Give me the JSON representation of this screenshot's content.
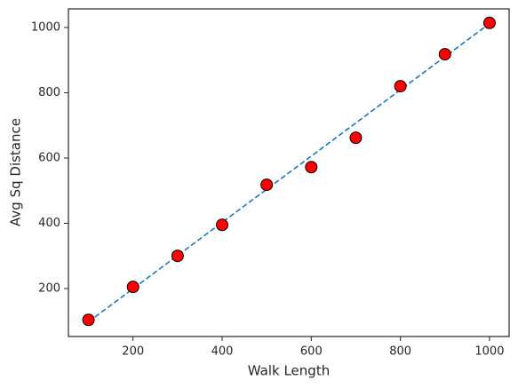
{
  "chart_data": {
    "type": "scatter",
    "xlabel": "Walk Length",
    "ylabel": "Avg Sq Distance",
    "xlim": [
      55,
      1044
    ],
    "ylim": [
      53,
      1057
    ],
    "xticks": [
      200,
      400,
      600,
      800,
      1000
    ],
    "yticks": [
      200,
      400,
      600,
      800,
      1000
    ],
    "series": [
      {
        "kind": "line",
        "style": "dashed",
        "color": "#1f77b4",
        "x": [
          100,
          1000
        ],
        "values": [
          98,
          1012
        ]
      },
      {
        "kind": "points",
        "color": "#ff0000",
        "x": [
          100,
          200,
          300,
          400,
          500,
          600,
          700,
          800,
          900,
          1000
        ],
        "values": [
          104,
          205,
          300,
          395,
          518,
          572,
          662,
          820,
          918,
          1014
        ]
      }
    ]
  }
}
